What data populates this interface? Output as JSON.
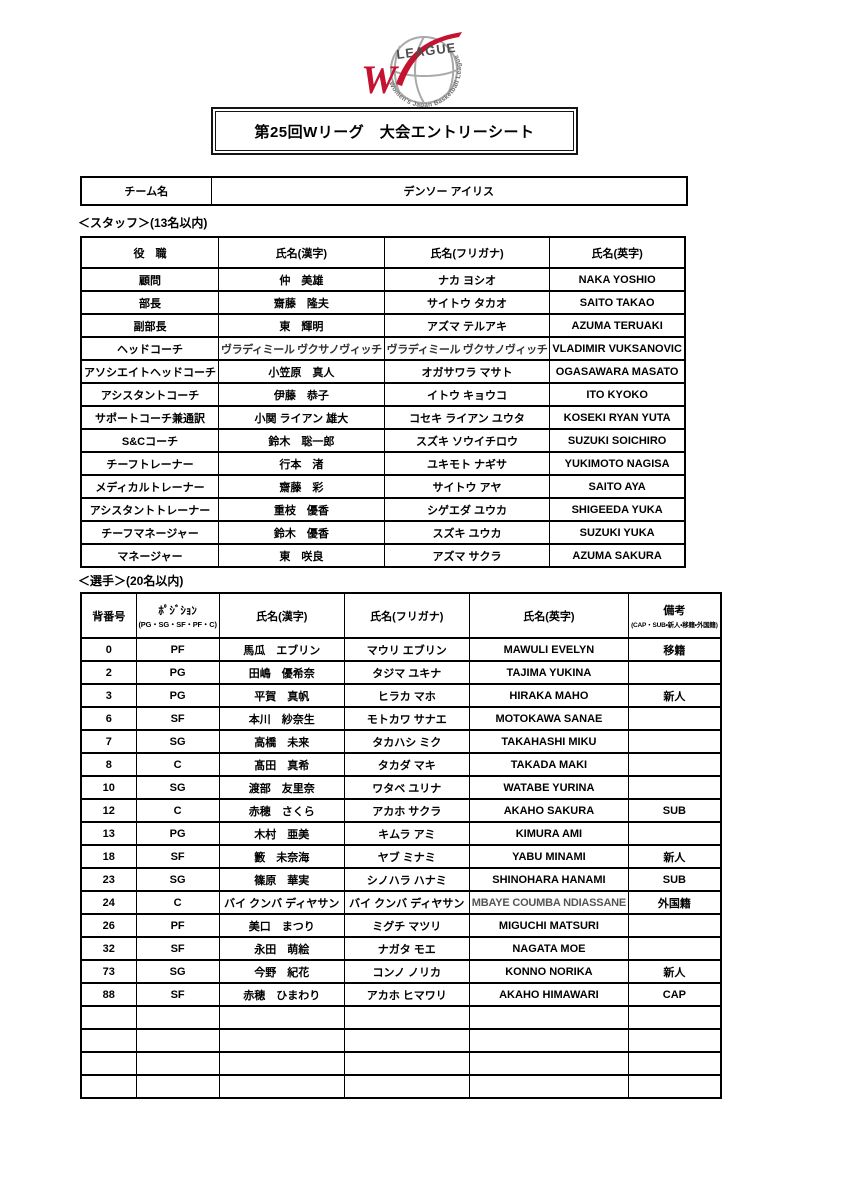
{
  "logo": {
    "w": "W",
    "league": "LEAGUE",
    "tagline": "Women's Japan Basketball League",
    "accent": "#c41230",
    "ball_gray": "#a9a9a9",
    "text_gray": "#595959"
  },
  "title": "第25回Wリーグ　大会エントリーシート",
  "team": {
    "label": "チーム名",
    "name": "デンソー アイリス"
  },
  "staff_section": {
    "label": "＜スタッフ＞(13名以内)",
    "headers": [
      "役　職",
      "氏名(漢字)",
      "氏名(フリガナ)",
      "氏名(英字)"
    ],
    "rows": [
      [
        "顧問",
        "仲　美雄",
        "ナカ ヨシオ",
        "NAKA YOSHIO"
      ],
      [
        "部長",
        "齋藤　隆夫",
        "サイトウ タカオ",
        "SAITO TAKAO"
      ],
      [
        "副部長",
        "東　輝明",
        "アズマ テルアキ",
        "AZUMA TERUAKI"
      ],
      [
        "ヘッドコーチ",
        "ヴラディミール ヴクサノヴィッチ",
        "ヴラディミール ヴクサノヴィッチ",
        "VLADIMIR VUKSANOVIC"
      ],
      [
        "アソシエイトヘッドコーチ",
        "小笠原　真人",
        "オガサワラ マサト",
        "OGASAWARA MASATO"
      ],
      [
        "アシスタントコーチ",
        "伊藤　恭子",
        "イトウ キョウコ",
        "ITO KYOKO"
      ],
      [
        "サポートコーチ兼通訳",
        "小関 ライアン 雄大",
        "コセキ ライアン ユウタ",
        "KOSEKI RYAN YUTA"
      ],
      [
        "S&Cコーチ",
        "鈴木　聡一郎",
        "スズキ ソウイチロウ",
        "SUZUKI SOICHIRO"
      ],
      [
        "チーフトレーナー",
        "行本　渚",
        "ユキモト ナギサ",
        "YUKIMOTO NAGISA"
      ],
      [
        "メディカルトレーナー",
        "齋藤　彩",
        "サイトウ アヤ",
        "SAITO AYA"
      ],
      [
        "アシスタントトレーナー",
        "重枝　優香",
        "シゲエダ ユウカ",
        "SHIGEEDA YUKA"
      ],
      [
        "チーフマネージャー",
        "鈴木　優香",
        "スズキ ユウカ",
        "SUZUKI YUKA"
      ],
      [
        "マネージャー",
        "東　咲良",
        "アズマ サクラ",
        "AZUMA SAKURA"
      ]
    ]
  },
  "players_section": {
    "label": "＜選手＞(20名以内)",
    "headers": {
      "number": "背番号",
      "position": "ﾎﾟｼﾞｼｮﾝ",
      "position_sub": "(PG・SG・SF・PF・C)",
      "kanji": "氏名(漢字)",
      "furigana": "氏名(フリガナ)",
      "english": "氏名(英字)",
      "remarks": "備考",
      "remarks_sub": "(CAP・SUB・新人・移籍・外国籍)"
    },
    "rows": [
      [
        "0",
        "PF",
        "馬瓜　エブリン",
        "マウリ エブリン",
        "MAWULI EVELYN",
        "移籍"
      ],
      [
        "2",
        "PG",
        "田嶋　優希奈",
        "タジマ ユキナ",
        "TAJIMA YUKINA",
        ""
      ],
      [
        "3",
        "PG",
        "平賀　真帆",
        "ヒラカ マホ",
        "HIRAKA MAHO",
        "新人"
      ],
      [
        "6",
        "SF",
        "本川　紗奈生",
        "モトカワ サナエ",
        "MOTOKAWA SANAE",
        ""
      ],
      [
        "7",
        "SG",
        "高橋　未来",
        "タカハシ ミク",
        "TAKAHASHI MIKU",
        ""
      ],
      [
        "8",
        "C",
        "髙田　真希",
        "タカダ マキ",
        "TAKADA MAKI",
        ""
      ],
      [
        "10",
        "SG",
        "渡部　友里奈",
        "ワタベ ユリナ",
        "WATABE YURINA",
        ""
      ],
      [
        "12",
        "C",
        "赤穂　さくら",
        "アカホ サクラ",
        "AKAHO SAKURA",
        "SUB"
      ],
      [
        "13",
        "PG",
        "木村　亜美",
        "キムラ アミ",
        "KIMURA AMI",
        ""
      ],
      [
        "18",
        "SF",
        "籔　未奈海",
        "ヤブ ミナミ",
        "YABU MINAMI",
        "新人"
      ],
      [
        "23",
        "SG",
        "篠原　華実",
        "シノハラ ハナミ",
        "SHINOHARA HANAMI",
        "SUB"
      ],
      [
        "24",
        "C",
        "バイ クンバ ディヤサン",
        "バイ クンバ ディヤサン",
        "MBAYE COUMBA NDIASSANE",
        "外国籍"
      ],
      [
        "26",
        "PF",
        "美口　まつり",
        "ミグチ マツリ",
        "MIGUCHI MATSURI",
        ""
      ],
      [
        "32",
        "SF",
        "永田　萌絵",
        "ナガタ モエ",
        "NAGATA MOE",
        ""
      ],
      [
        "73",
        "SG",
        "今野　紀花",
        "コンノ ノリカ",
        "KONNO NORIKA",
        "新人"
      ],
      [
        "88",
        "SF",
        "赤穂　ひまわり",
        "アカホ ヒマワリ",
        "AKAHO HIMAWARI",
        "CAP"
      ]
    ],
    "empty_rows": 4
  }
}
